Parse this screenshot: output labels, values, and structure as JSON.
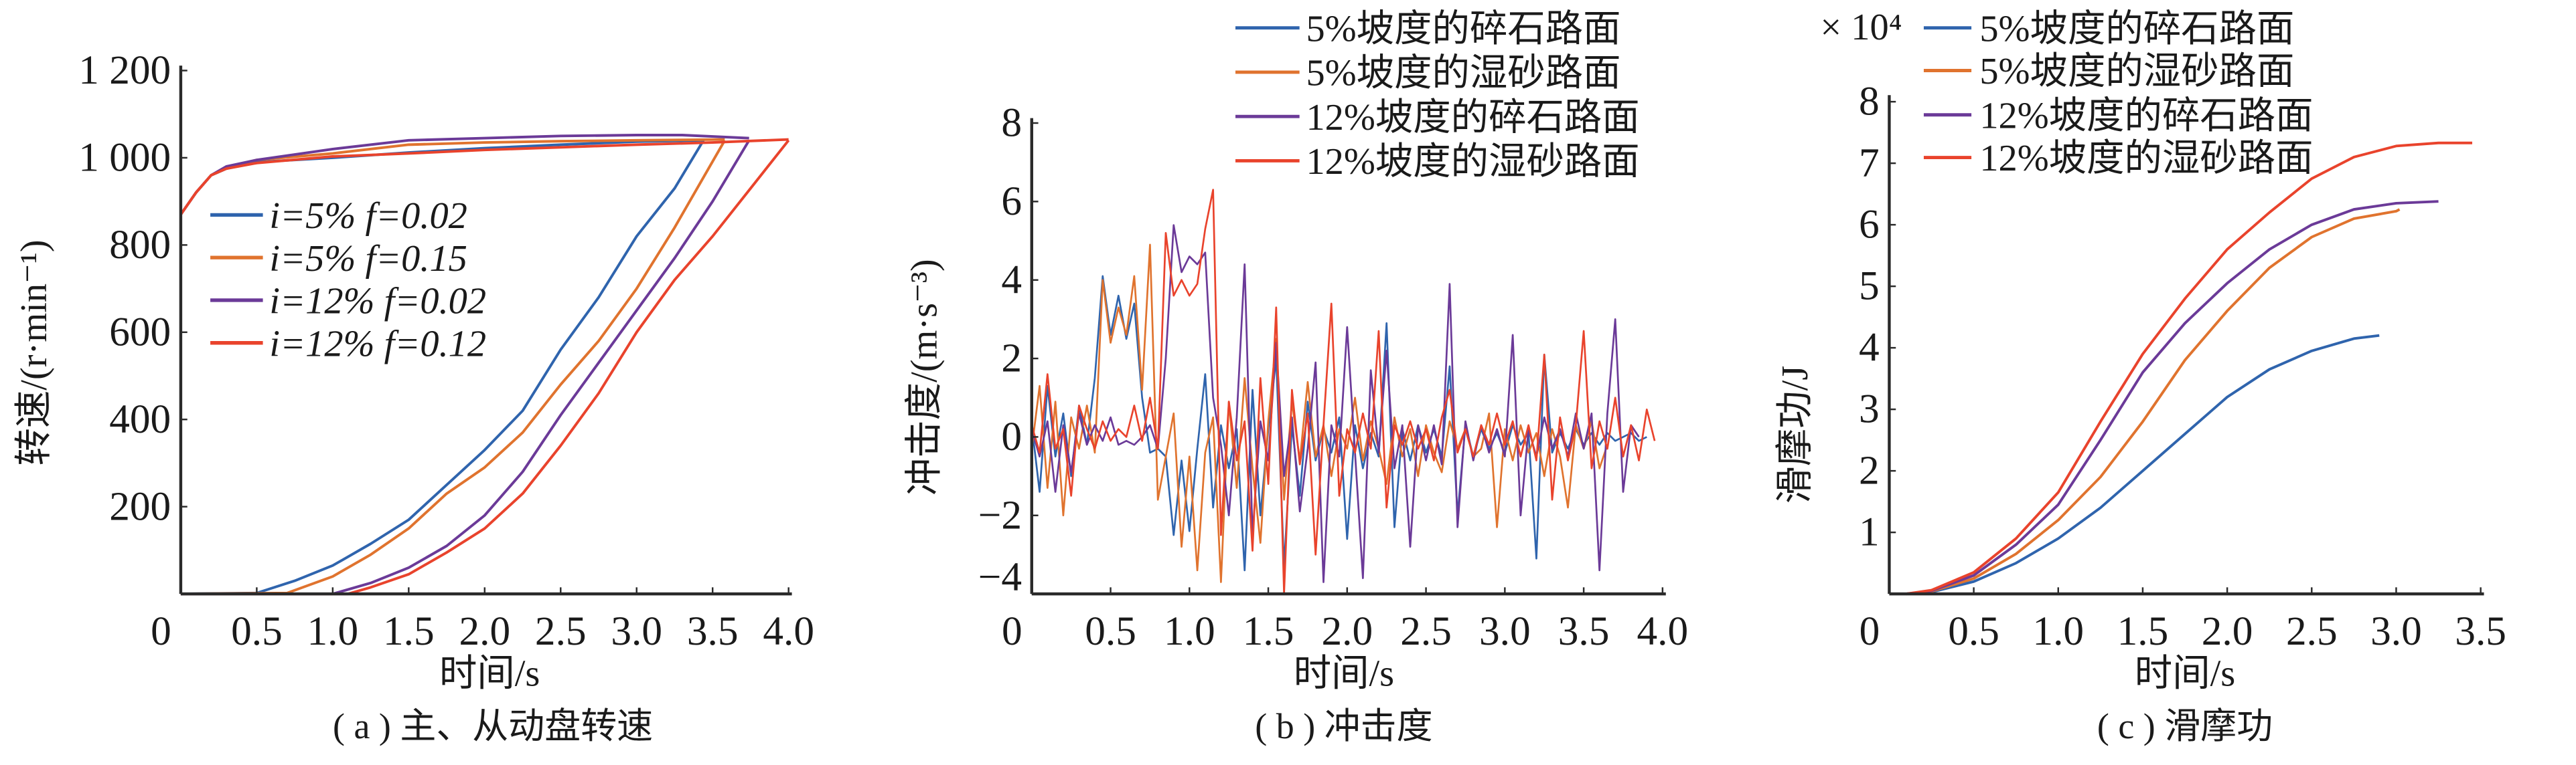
{
  "colors": {
    "blue": "#2f64ad",
    "orange": "#e0732e",
    "purple": "#6b3a98",
    "red": "#e9432c",
    "axis": "#2a2a2a"
  },
  "chart_data": [
    {
      "type": "line",
      "caption": "( a ) 主、从动盘转速",
      "xlabel": "时间/s",
      "ylabel": "转速/(r·min⁻¹)",
      "xlim": [
        0,
        4.0
      ],
      "ylim": [
        0,
        1200
      ],
      "xticks": [
        "0",
        "0.5",
        "1.0",
        "1.5",
        "2.0",
        "2.5",
        "3.0",
        "3.5",
        "4.0"
      ],
      "yticks": [
        "200",
        "400",
        "600",
        "800",
        "1 000",
        "1 200"
      ],
      "ytick_values": [
        200,
        400,
        600,
        800,
        1000,
        1200
      ],
      "legend_position": "center-left",
      "series": [
        {
          "name": "i=5% f=0.02",
          "color": "#2f64ad",
          "drive": {
            "x": [
              0,
              0.1,
              0.2,
              0.3,
              0.5,
              1.0,
              1.5,
              2.0,
              2.5,
              3.0,
              3.44
            ],
            "y": [
              870,
              920,
              960,
              975,
              990,
              1000,
              1012,
              1022,
              1030,
              1037,
              1040
            ]
          },
          "driven": {
            "x": [
              0,
              0.5,
              0.75,
              1.0,
              1.25,
              1.5,
              1.75,
              2.0,
              2.25,
              2.5,
              2.75,
              3.0,
              3.25,
              3.44
            ],
            "y": [
              0,
              2,
              30,
              65,
              115,
              170,
              250,
              330,
              420,
              560,
              680,
              820,
              930,
              1040
            ]
          }
        },
        {
          "name": "i=5% f=0.15",
          "color": "#e0732e",
          "drive": {
            "x": [
              0,
              0.1,
              0.2,
              0.3,
              0.5,
              1.0,
              1.5,
              2.0,
              2.5,
              3.0,
              3.58
            ],
            "y": [
              870,
              920,
              960,
              978,
              995,
              1010,
              1030,
              1035,
              1038,
              1040,
              1042
            ]
          },
          "driven": {
            "x": [
              0,
              0.7,
              1.0,
              1.25,
              1.5,
              1.75,
              2.0,
              2.25,
              2.5,
              2.75,
              3.0,
              3.25,
              3.58
            ],
            "y": [
              0,
              2,
              40,
              90,
              150,
              230,
              290,
              370,
              480,
              580,
              700,
              840,
              1040
            ]
          }
        },
        {
          "name": "i=12% f=0.02",
          "color": "#6b3a98",
          "drive": {
            "x": [
              0,
              0.1,
              0.2,
              0.3,
              0.5,
              1.0,
              1.5,
              2.0,
              2.5,
              3.0,
              3.3,
              3.74
            ],
            "y": [
              870,
              920,
              960,
              980,
              995,
              1020,
              1040,
              1045,
              1050,
              1052,
              1052,
              1045
            ]
          },
          "driven": {
            "x": [
              0,
              1.0,
              1.25,
              1.5,
              1.75,
              2.0,
              2.25,
              2.5,
              2.75,
              3.0,
              3.25,
              3.5,
              3.74
            ],
            "y": [
              0,
              0,
              25,
              60,
              110,
              180,
              280,
              410,
              530,
              650,
              770,
              900,
              1040
            ]
          }
        },
        {
          "name": "i=12% f=0.12",
          "color": "#e9432c",
          "drive": {
            "x": [
              0,
              0.1,
              0.2,
              0.3,
              0.5,
              1.0,
              1.5,
              2.0,
              2.5,
              3.0,
              3.5,
              4.0
            ],
            "y": [
              870,
              920,
              960,
              975,
              988,
              1003,
              1010,
              1018,
              1024,
              1030,
              1035,
              1042
            ]
          },
          "driven": {
            "x": [
              0,
              1.1,
              1.25,
              1.5,
              1.75,
              2.0,
              2.25,
              2.5,
              2.75,
              3.0,
              3.25,
              3.5,
              3.75,
              4.0
            ],
            "y": [
              0,
              0,
              15,
              45,
              95,
              150,
              230,
              340,
              460,
              600,
              720,
              820,
              930,
              1040
            ]
          }
        }
      ]
    },
    {
      "type": "line",
      "caption": "( b ) 冲击度",
      "xlabel": "时间/s",
      "ylabel": "冲击度/(m·s⁻³)",
      "xlim": [
        0,
        4.0
      ],
      "ylim": [
        -4,
        8
      ],
      "xticks": [
        "0",
        "0.5",
        "1.0",
        "1.5",
        "2.0",
        "2.5",
        "3.0",
        "3.5",
        "4.0"
      ],
      "yticks": [
        "−4",
        "−2",
        "0",
        "2",
        "4",
        "6",
        "8"
      ],
      "ytick_values": [
        -4,
        -2,
        0,
        2,
        4,
        6,
        8
      ],
      "legend_position": "top-right",
      "x": [
        0,
        0.05,
        0.1,
        0.15,
        0.2,
        0.25,
        0.3,
        0.35,
        0.4,
        0.45,
        0.5,
        0.55,
        0.6,
        0.65,
        0.7,
        0.75,
        0.8,
        0.85,
        0.9,
        0.95,
        1.0,
        1.05,
        1.1,
        1.15,
        1.2,
        1.25,
        1.3,
        1.35,
        1.4,
        1.45,
        1.5,
        1.55,
        1.6,
        1.65,
        1.7,
        1.75,
        1.8,
        1.85,
        1.9,
        1.95,
        2.0,
        2.05,
        2.1,
        2.15,
        2.2,
        2.25,
        2.3,
        2.35,
        2.4,
        2.45,
        2.5,
        2.55,
        2.6,
        2.65,
        2.7,
        2.75,
        2.8,
        2.85,
        2.9,
        2.95,
        3.0,
        3.05,
        3.1,
        3.15,
        3.2,
        3.25,
        3.3,
        3.35,
        3.4,
        3.45,
        3.5,
        3.55,
        3.6,
        3.65,
        3.7,
        3.75,
        3.8,
        3.85,
        3.9,
        3.95,
        4.0
      ],
      "series": [
        {
          "name": "5%坡度的碎石路面",
          "color": "#2f64ad",
          "y": [
            0.3,
            -1.4,
            1.3,
            -0.5,
            0.6,
            -1.0,
            0.8,
            -0.2,
            1.5,
            4.1,
            2.6,
            3.6,
            2.5,
            3.4,
            1.0,
            -0.4,
            -0.3,
            -0.5,
            -2.5,
            -0.6,
            -2.4,
            -0.3,
            1.6,
            -1.8,
            0.3,
            -0.8,
            0.2,
            -3.4,
            1.2,
            -2.0,
            0.2,
            2.0,
            -3.3,
            0.3,
            -1.5,
            0.9,
            -0.6,
            0.2,
            -0.4,
            0.5,
            -2.6,
            0.3,
            -0.8,
            0.1,
            -0.5,
            2.9,
            -2.3,
            0.2,
            -0.6,
            0.3,
            -0.4,
            0.2,
            -0.5,
            1.8,
            -2.0,
            0.3,
            -0.5,
            0.2,
            -0.3,
            0.1,
            -0.4,
            0.3,
            -0.2,
            0.1,
            -3.1,
            2.1,
            -0.4,
            0.1,
            -0.3,
            0.2,
            -0.2,
            0.1,
            -0.2,
            0.1,
            -0.1,
            0.0,
            0.1,
            -0.1,
            0.0,
            null,
            null
          ]
        },
        {
          "name": "5%坡度的湿砂路面",
          "color": "#e0732e",
          "y": [
            -0.3,
            1.3,
            -1.3,
            0.9,
            -2.0,
            0.5,
            -0.3,
            0.8,
            -0.4,
            4.0,
            2.4,
            3.3,
            2.6,
            4.1,
            1.2,
            4.9,
            -1.6,
            -0.5,
            0.6,
            -2.8,
            -0.5,
            -3.4,
            -0.4,
            0.5,
            -3.7,
            0.9,
            -1.3,
            1.5,
            -0.8,
            -2.7,
            0.4,
            2.5,
            -1.6,
            0.9,
            -0.6,
            1.4,
            -0.5,
            0.3,
            -1.0,
            0.2,
            -0.3,
            1.0,
            -0.6,
            0.4,
            -0.3,
            -1.2,
            0.5,
            -0.5,
            0.2,
            -1.0,
            0.3,
            -0.4,
            -0.9,
            0.4,
            -0.3,
            0.2,
            -0.5,
            -0.3,
            0.6,
            -2.3,
            0.2,
            -0.6,
            0.3,
            -0.4,
            0.1,
            -1.0,
            0.2,
            -0.5,
            -1.8,
            0.3,
            -0.3,
            0.4,
            -0.8,
            -0.2,
            null,
            null,
            null,
            null,
            null,
            null,
            null
          ]
        },
        {
          "name": "12%坡度的碎石路面",
          "color": "#6b3a98",
          "y": [
            0.2,
            -0.5,
            0.4,
            -1.4,
            0.3,
            -0.9,
            0.6,
            -0.2,
            0.3,
            -0.1,
            0.5,
            -0.2,
            -0.1,
            -0.2,
            0.0,
            0.3,
            -0.3,
            2.0,
            5.4,
            4.2,
            4.6,
            4.4,
            4.7,
            1.0,
            -0.2,
            -2.0,
            0.5,
            4.4,
            -2.5,
            0.4,
            -0.6,
            2.4,
            -1.0,
            0.5,
            -1.9,
            -0.3,
            1.9,
            -3.7,
            0.3,
            -0.5,
            2.8,
            -0.4,
            -3.6,
            1.7,
            -0.4,
            2.2,
            -0.8,
            0.3,
            -2.8,
            0.3,
            -0.6,
            0.3,
            -0.7,
            3.9,
            -2.3,
            0.4,
            -0.6,
            0.3,
            -0.4,
            0.2,
            -0.5,
            2.6,
            -2.0,
            0.2,
            -0.5,
            0.5,
            -0.3,
            0.2,
            -0.5,
            0.6,
            -0.3,
            0.6,
            -3.4,
            0.6,
            3.0,
            -1.4,
            0.3,
            0.0,
            null,
            null,
            null
          ]
        },
        {
          "name": "12%坡度的湿砂路面",
          "color": "#e9432c",
          "y": [
            0.3,
            -0.4,
            1.6,
            -0.3,
            0.2,
            -1.5,
            0.8,
            0.2,
            -0.3,
            0.4,
            -0.1,
            0.2,
            0.0,
            0.8,
            -0.1,
            1.0,
            -0.3,
            5.2,
            3.6,
            4.0,
            3.6,
            3.9,
            5.3,
            6.3,
            -2.5,
            0.9,
            -0.6,
            0.4,
            -2.9,
            1.5,
            -1.2,
            3.3,
            -4.0,
            1.2,
            -0.7,
            0.6,
            -3.0,
            0.3,
            3.4,
            -1.5,
            0.2,
            -0.4,
            0.6,
            -0.3,
            2.7,
            -1.8,
            0.3,
            -0.2,
            0.4,
            -0.3,
            0.2,
            -0.6,
            0.5,
            1.2,
            -0.4,
            0.2,
            -0.5,
            0.3,
            -0.2,
            0.6,
            -0.2,
            0.4,
            -0.5,
            0.3,
            -0.6,
            2.1,
            -1.6,
            0.5,
            -0.6,
            0.3,
            2.7,
            -0.8,
            0.4,
            -0.3,
            1.0,
            -0.5,
            0.3,
            -0.6,
            0.7,
            -0.1,
            null
          ]
        }
      ]
    },
    {
      "type": "line",
      "caption": "( c ) 滑摩功",
      "xlabel": "时间/s",
      "ylabel": "滑摩功/J",
      "y_multiplier": "× 10⁴",
      "xlim": [
        0,
        3.5
      ],
      "ylim": [
        0,
        8
      ],
      "xticks": [
        "0",
        "0.5",
        "1.0",
        "1.5",
        "2.0",
        "2.5",
        "3.0",
        "3.5"
      ],
      "yticks": [
        "1",
        "2",
        "3",
        "4",
        "5",
        "6",
        "7",
        "8"
      ],
      "ytick_values": [
        1,
        2,
        3,
        4,
        5,
        6,
        7,
        8
      ],
      "legend_position": "top",
      "series": [
        {
          "name": "5%坡度的碎石路面",
          "color": "#2f64ad",
          "x": [
            0.1,
            0.25,
            0.5,
            0.75,
            1.0,
            1.25,
            1.5,
            1.75,
            2.0,
            2.25,
            2.5,
            2.75,
            2.9
          ],
          "y": [
            0,
            0.03,
            0.2,
            0.5,
            0.9,
            1.4,
            2.0,
            2.6,
            3.2,
            3.65,
            3.95,
            4.15,
            4.2
          ]
        },
        {
          "name": "5%坡度的湿砂路面",
          "color": "#e0732e",
          "x": [
            0.1,
            0.25,
            0.5,
            0.75,
            1.0,
            1.25,
            1.5,
            1.75,
            2.0,
            2.25,
            2.5,
            2.75,
            3.0,
            3.02
          ],
          "y": [
            0,
            0.04,
            0.25,
            0.65,
            1.2,
            1.9,
            2.8,
            3.8,
            4.6,
            5.3,
            5.8,
            6.1,
            6.22,
            6.25
          ]
        },
        {
          "name": "12%坡度的碎石路面",
          "color": "#6b3a98",
          "x": [
            0.1,
            0.25,
            0.5,
            0.75,
            1.0,
            1.25,
            1.5,
            1.75,
            2.0,
            2.25,
            2.5,
            2.75,
            3.0,
            3.25
          ],
          "y": [
            0,
            0.05,
            0.3,
            0.8,
            1.45,
            2.5,
            3.6,
            4.4,
            5.05,
            5.6,
            6.0,
            6.25,
            6.35,
            6.38
          ]
        },
        {
          "name": "12%坡度的湿砂路面",
          "color": "#e9432c",
          "x": [
            0.1,
            0.25,
            0.5,
            0.75,
            1.0,
            1.25,
            1.5,
            1.75,
            2.0,
            2.25,
            2.5,
            2.75,
            3.0,
            3.25,
            3.45
          ],
          "y": [
            0,
            0.06,
            0.35,
            0.9,
            1.65,
            2.8,
            3.9,
            4.8,
            5.6,
            6.2,
            6.75,
            7.1,
            7.28,
            7.33,
            7.33
          ]
        }
      ]
    }
  ]
}
